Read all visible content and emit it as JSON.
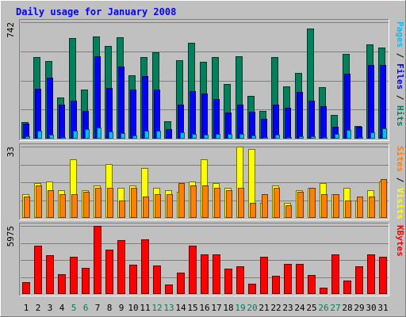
{
  "colors": {
    "background": "#c0c0c0",
    "title": "#0000ff",
    "hits": "#00805c",
    "files": "#0000ff",
    "pages": "#00c0ff",
    "visits": "#ffff00",
    "sites": "#ff8000",
    "kbytes": "#ff0000",
    "weekend_day": "#00805c",
    "weekday_day": "#000000",
    "grid": "#7f7f7f"
  },
  "chart_data": [
    {
      "type": "bar",
      "title": "Daily usage for January 2008",
      "ylabel_parts": [
        "Pages",
        "Files",
        "Hits"
      ],
      "ymax_label": "742",
      "ylim": [
        0,
        742
      ],
      "categories": [
        "1",
        "2",
        "3",
        "4",
        "5",
        "6",
        "7",
        "8",
        "9",
        "10",
        "11",
        "12",
        "13",
        "14",
        "15",
        "16",
        "17",
        "18",
        "19",
        "20",
        "21",
        "22",
        "23",
        "24",
        "25",
        "26",
        "27",
        "28",
        "29",
        "30",
        "31"
      ],
      "weekend_days": [
        "5",
        "6",
        "12",
        "13",
        "19",
        "20",
        "26",
        "27"
      ],
      "series": [
        {
          "name": "Hits",
          "color_key": "hits",
          "values": [
            105,
            520,
            495,
            260,
            642,
            315,
            652,
            590,
            647,
            405,
            520,
            552,
            110,
            500,
            610,
            490,
            520,
            350,
            525,
            275,
            175,
            520,
            335,
            420,
            700,
            330,
            150,
            540,
            80,
            600,
            582
          ]
        },
        {
          "name": "Files",
          "color_key": "files",
          "values": [
            98,
            318,
            390,
            215,
            240,
            175,
            525,
            325,
            460,
            315,
            400,
            315,
            60,
            215,
            305,
            290,
            250,
            165,
            215,
            170,
            125,
            215,
            195,
            300,
            240,
            205,
            75,
            415,
            75,
            470,
            470
          ]
        },
        {
          "name": "Pages",
          "color_key": "pages",
          "values": [
            15,
            50,
            25,
            12,
            50,
            60,
            70,
            45,
            35,
            20,
            50,
            50,
            5,
            40,
            30,
            25,
            30,
            30,
            30,
            20,
            12,
            25,
            12,
            15,
            15,
            10,
            30,
            55,
            10,
            40,
            65
          ]
        }
      ]
    },
    {
      "type": "bar",
      "ylabel_parts": [
        "Sites",
        "Visits"
      ],
      "ymax_label": "33",
      "ylim": [
        0,
        33
      ],
      "categories": [
        "1",
        "2",
        "3",
        "4",
        "5",
        "6",
        "7",
        "8",
        "9",
        "10",
        "11",
        "12",
        "13",
        "14",
        "15",
        "16",
        "17",
        "18",
        "19",
        "20",
        "21",
        "22",
        "23",
        "24",
        "25",
        "26",
        "27",
        "28",
        "29",
        "30",
        "31"
      ],
      "series": [
        {
          "name": "Visits",
          "color_key": "visits",
          "values": [
            11,
            16,
            17,
            13,
            27,
            13,
            15,
            25,
            14,
            15,
            23,
            14,
            13,
            12,
            17,
            27,
            16,
            14,
            33,
            32,
            7,
            15,
            7,
            13,
            14,
            16,
            11,
            14,
            8,
            13,
            17
          ]
        },
        {
          "name": "Sites",
          "color_key": "sites",
          "values": [
            10,
            15,
            13,
            11,
            11,
            12,
            14,
            14,
            8,
            14,
            10,
            11,
            11,
            16,
            15,
            15,
            14,
            13,
            14,
            7,
            11,
            14,
            6,
            12,
            14,
            11,
            11,
            8,
            10,
            10,
            18
          ]
        }
      ]
    },
    {
      "type": "bar",
      "ylabel_parts": [
        "KBytes"
      ],
      "ymax_label": "5975",
      "ylim": [
        0,
        5975
      ],
      "categories": [
        "1",
        "2",
        "3",
        "4",
        "5",
        "6",
        "7",
        "8",
        "9",
        "10",
        "11",
        "12",
        "13",
        "14",
        "15",
        "16",
        "17",
        "18",
        "19",
        "20",
        "21",
        "22",
        "23",
        "24",
        "25",
        "26",
        "27",
        "28",
        "29",
        "30",
        "31"
      ],
      "series": [
        {
          "name": "KBytes",
          "color_key": "kbytes",
          "values": [
            1050,
            4240,
            3400,
            1720,
            3250,
            2260,
            6000,
            3880,
            4740,
            2600,
            4800,
            2500,
            800,
            1900,
            4240,
            3450,
            3440,
            2220,
            2420,
            930,
            3250,
            1600,
            2660,
            2660,
            1700,
            560,
            3450,
            1200,
            2460,
            3450,
            3250
          ]
        }
      ]
    }
  ]
}
